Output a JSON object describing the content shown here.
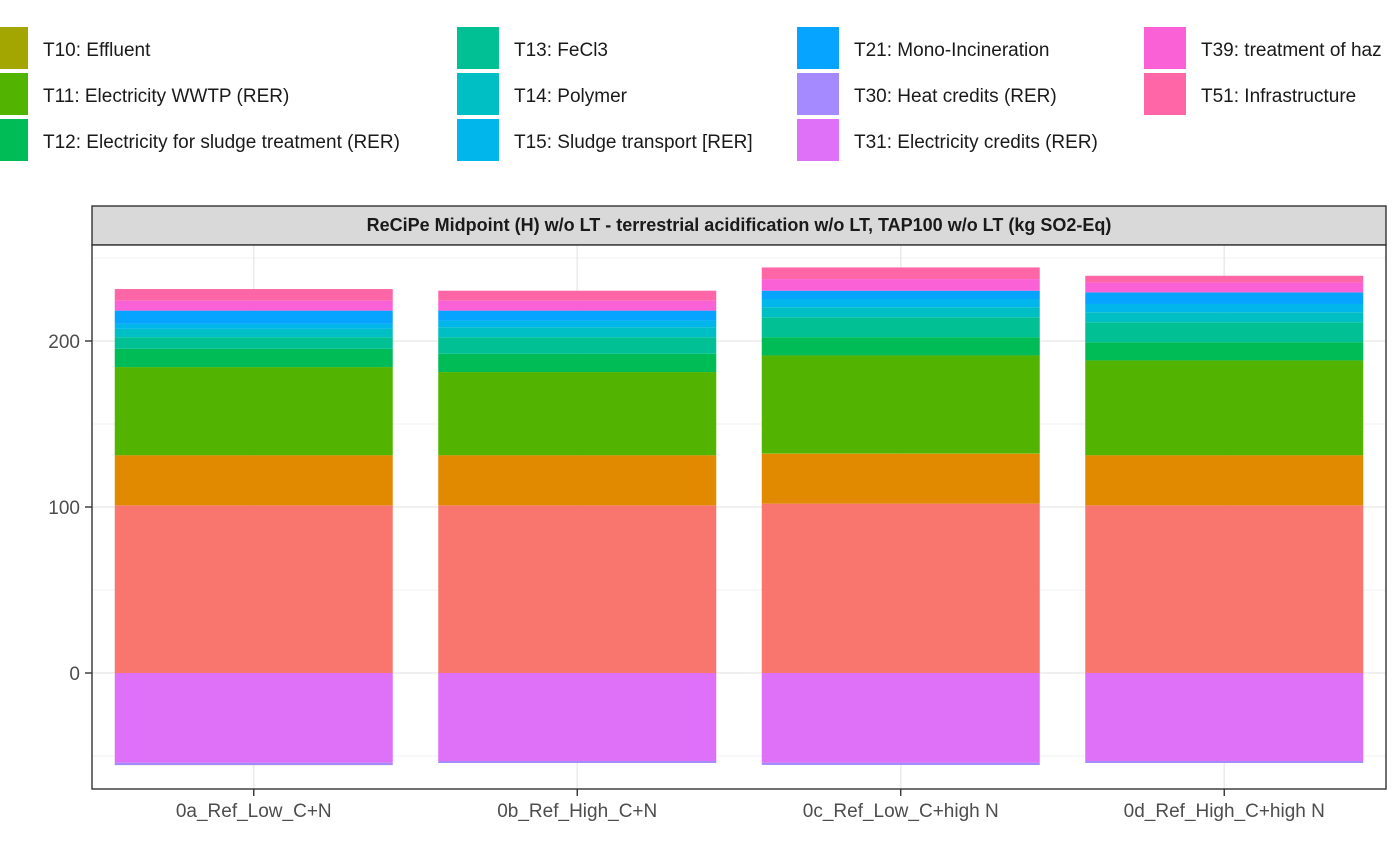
{
  "chart_data": {
    "type": "bar",
    "stacked": true,
    "facet_title": "ReCiPe Midpoint (H) w/o LT - terrestrial acidification w/o LT, TAP100 w/o LT (kg SO2-Eq)",
    "categories": [
      "0a_Ref_Low_C+N",
      "0b_Ref_High_C+N",
      "0c_Ref_Low_C+high N",
      "0d_Ref_High_C+high N"
    ],
    "ylim": [
      -70,
      255
    ],
    "y_ticks": [
      0,
      100,
      200
    ],
    "grid": true,
    "legend_position": "top",
    "legend": [
      {
        "label": "T10: Effluent",
        "color": "#A3A500"
      },
      {
        "label": "T11: Electricity WWTP (RER)",
        "color": "#53B400"
      },
      {
        "label": "T12: Electricity for sludge treatment (RER)",
        "color": "#00BC56"
      },
      {
        "label": "T13: FeCl3",
        "color": "#00C094"
      },
      {
        "label": "T14: Polymer",
        "color": "#00BFC4"
      },
      {
        "label": "T15: Sludge transport [RER]",
        "color": "#00B6EB"
      },
      {
        "label": "T21: Mono-Incineration",
        "color": "#06A4FF"
      },
      {
        "label": "T30: Heat credits (RER)",
        "color": "#A58AFF"
      },
      {
        "label": "T31: Electricity credits (RER)",
        "color": "#DF70F8"
      },
      {
        "label": "T39: treatment of haz",
        "color": "#FB61D7"
      },
      {
        "label": "T51: Infrastructure",
        "color": "#FF66A8"
      }
    ],
    "series": [
      {
        "color": "#F8766D",
        "values": [
          101,
          101,
          102,
          101
        ]
      },
      {
        "color": "#E18A00",
        "values": [
          30,
          30,
          30,
          30
        ]
      },
      {
        "name": "T10: Effluent",
        "color": "#A3A500",
        "values": [
          0.3,
          0.3,
          0.3,
          0.3
        ]
      },
      {
        "name": "T11: Electricity WWTP (RER)",
        "color": "#53B400",
        "values": [
          53,
          50,
          59,
          57
        ]
      },
      {
        "name": "T12: Electricity for sludge treatment (RER)",
        "color": "#00BC56",
        "values": [
          11,
          11,
          11,
          11
        ]
      },
      {
        "name": "T13: FeCl3",
        "color": "#00C094",
        "values": [
          7,
          10,
          12,
          12
        ]
      },
      {
        "name": "T14: Polymer",
        "color": "#00BFC4",
        "values": [
          5,
          6,
          6,
          6
        ]
      },
      {
        "name": "T15: Sludge transport [RER]",
        "color": "#00B6EB",
        "values": [
          3,
          4,
          5,
          5
        ]
      },
      {
        "name": "T21: Mono-Incineration",
        "color": "#06A4FF",
        "values": [
          8,
          6,
          5,
          7
        ]
      },
      {
        "name": "T39: treatment of haz",
        "color": "#FB61D7",
        "values": [
          6,
          6,
          7,
          6
        ]
      },
      {
        "name": "T51: Infrastructure",
        "color": "#FF66A8",
        "values": [
          7,
          6,
          7,
          4
        ]
      },
      {
        "name": "T31: Electricity credits (RER)",
        "color": "#DF70F8",
        "values": [
          -54,
          -53,
          -54,
          -53
        ]
      },
      {
        "name": "T30: Heat credits (RER)",
        "color": "#A58AFF",
        "values": [
          -1.5,
          -1.2,
          -1.4,
          -1.2
        ]
      }
    ]
  }
}
